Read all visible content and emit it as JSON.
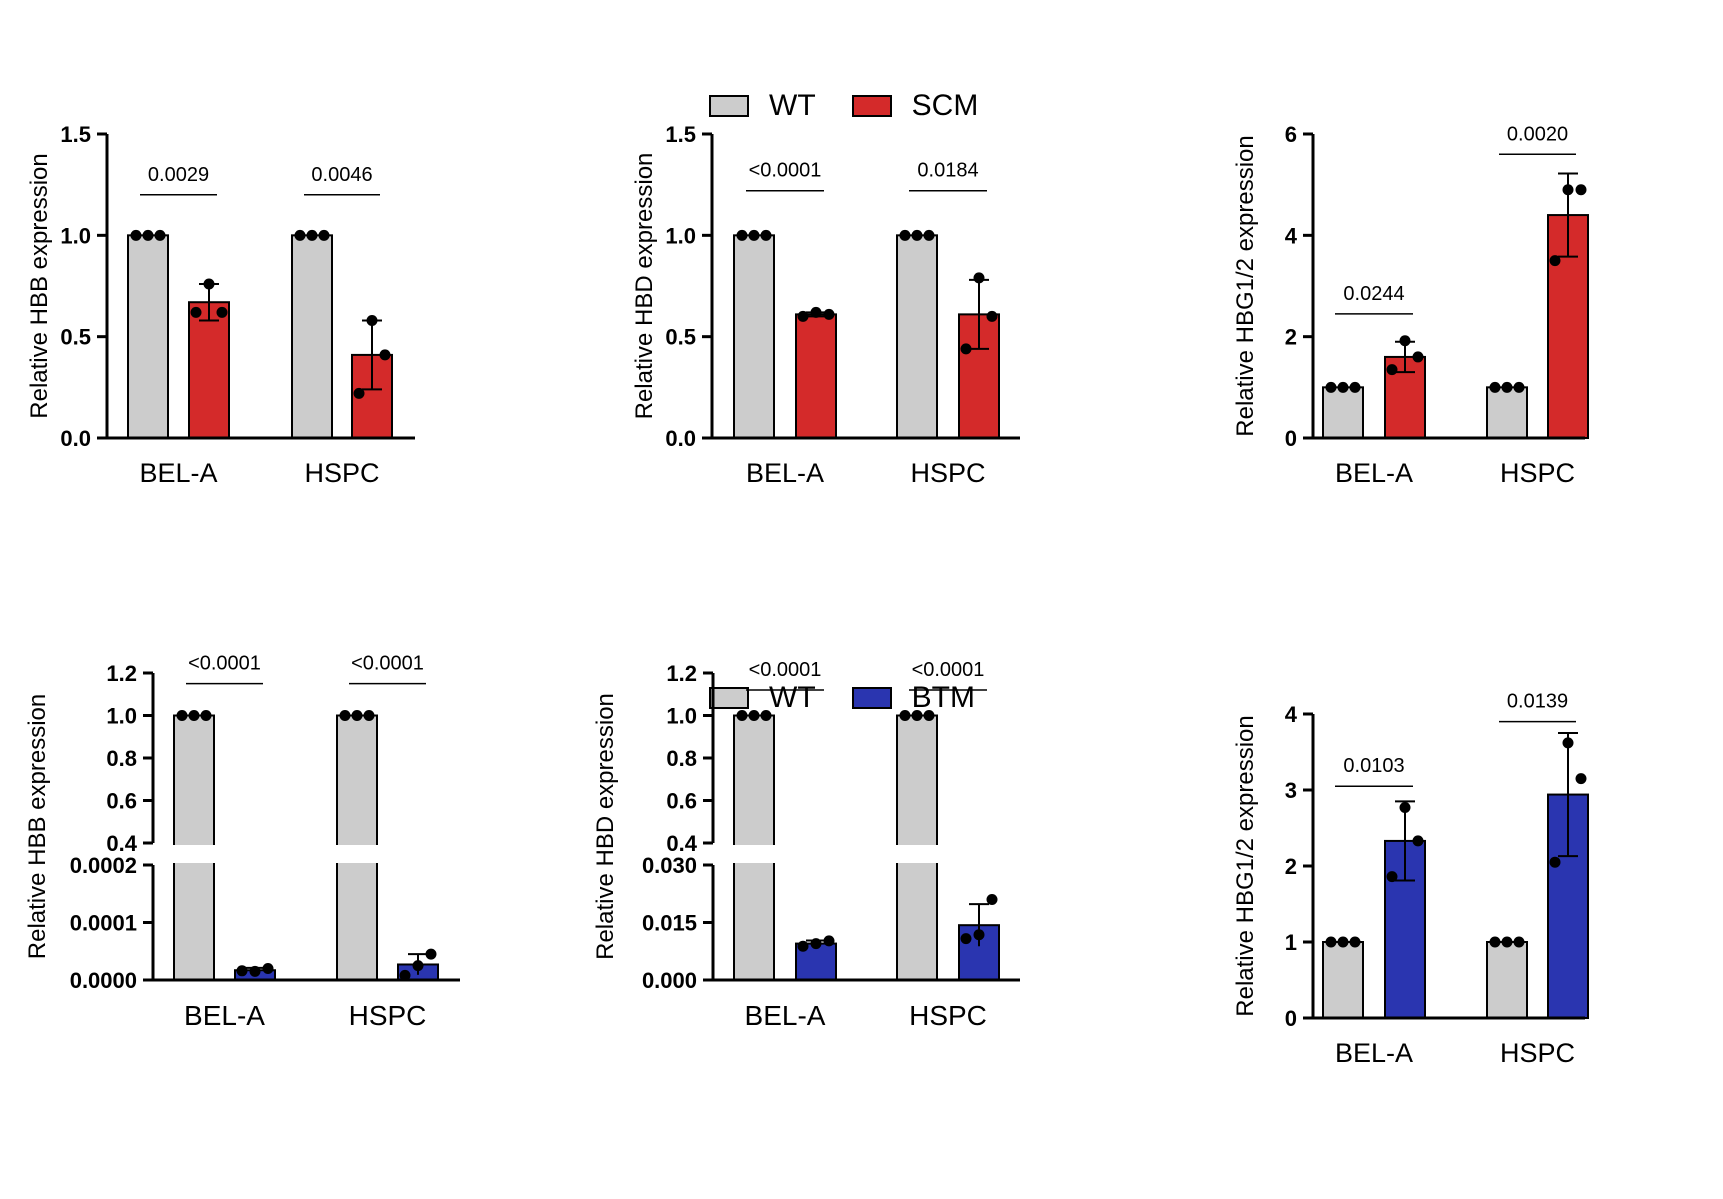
{
  "colors": {
    "wt": "#cccccc",
    "scm": "#d42a2a",
    "btm": "#2a35b0",
    "axis": "#000000"
  },
  "legends": [
    {
      "items": [
        {
          "label": "WT",
          "color": "#cccccc"
        },
        {
          "label": "SCM",
          "color": "#d42a2a"
        }
      ]
    },
    {
      "items": [
        {
          "label": "WT",
          "color": "#cccccc"
        },
        {
          "label": "BTM",
          "color": "#2a35b0"
        }
      ]
    }
  ],
  "chart_data": [
    {
      "type": "bar",
      "ylabel": "Relative HBB expression",
      "categories": [
        "BEL-A",
        "HSPC"
      ],
      "ylim": [
        0,
        1.5
      ],
      "yticks": [
        "0.0",
        "0.5",
        "1.0",
        "1.5"
      ],
      "tick_values": [
        0,
        0.5,
        1.0,
        1.5
      ],
      "series": [
        {
          "values": [
            1.0,
            1.0
          ],
          "err": [
            0,
            0
          ],
          "points": [
            [
              1.0,
              1.0,
              1.0
            ],
            [
              1.0,
              1.0,
              1.0
            ]
          ],
          "color": "#cccccc"
        },
        {
          "values": [
            0.67,
            0.41
          ],
          "err": [
            0.09,
            0.17
          ],
          "points": [
            [
              0.76,
              0.62,
              0.62
            ],
            [
              0.58,
              0.41,
              0.22
            ]
          ],
          "color": "#d42a2a"
        }
      ],
      "pvalues": [
        "0.0029",
        "0.0046"
      ],
      "pline_y": [
        1.2,
        1.2
      ]
    },
    {
      "type": "bar",
      "ylabel": "Relative HBD expression",
      "categories": [
        "BEL-A",
        "HSPC"
      ],
      "ylim": [
        0,
        1.5
      ],
      "yticks": [
        "0.0",
        "0.5",
        "1.0",
        "1.5"
      ],
      "tick_values": [
        0,
        0.5,
        1.0,
        1.5
      ],
      "series": [
        {
          "values": [
            1.0,
            1.0
          ],
          "err": [
            0,
            0
          ],
          "points": [
            [
              1.0,
              1.0,
              1.0
            ],
            [
              1.0,
              1.0,
              1.0
            ]
          ],
          "color": "#cccccc"
        },
        {
          "values": [
            0.61,
            0.61
          ],
          "err": [
            0.01,
            0.17
          ],
          "points": [
            [
              0.62,
              0.61,
              0.6
            ],
            [
              0.79,
              0.6,
              0.44
            ]
          ],
          "color": "#d42a2a"
        }
      ],
      "pvalues": [
        "<0.0001",
        "0.0184"
      ],
      "pline_y": [
        1.22,
        1.22
      ]
    },
    {
      "type": "bar",
      "ylabel": "Relative HBG1/2 expression",
      "categories": [
        "BEL-A",
        "HSPC"
      ],
      "ylim": [
        0,
        6
      ],
      "yticks": [
        "0",
        "2",
        "4",
        "6"
      ],
      "tick_values": [
        0,
        2,
        4,
        6
      ],
      "series": [
        {
          "values": [
            1.0,
            1.0
          ],
          "err": [
            0,
            0
          ],
          "points": [
            [
              1.0,
              1.0,
              1.0
            ],
            [
              1.0,
              1.0,
              1.0
            ]
          ],
          "color": "#cccccc"
        },
        {
          "values": [
            1.6,
            4.4
          ],
          "err": [
            0.3,
            0.82
          ],
          "points": [
            [
              1.92,
              1.6,
              1.35
            ],
            [
              4.9,
              4.9,
              3.5
            ]
          ],
          "color": "#d42a2a"
        }
      ],
      "pvalues": [
        "0.0244",
        "0.0020"
      ],
      "pline_y": [
        2.45,
        5.6
      ]
    },
    {
      "type": "bar",
      "ylabel": "Relative HBB expression",
      "categories": [
        "BEL-A",
        "HSPC"
      ],
      "broken_axis": true,
      "upper_ylim": [
        0.4,
        1.2
      ],
      "upper_ticks": [
        "0.4",
        "0.6",
        "0.8",
        "1.0",
        "1.2"
      ],
      "upper_tick_values": [
        0.4,
        0.6,
        0.8,
        1.0,
        1.2
      ],
      "lower_ylim": [
        0,
        0.0002
      ],
      "lower_ticks": [
        "0.0000",
        "0.0001",
        "0.0002"
      ],
      "lower_tick_values": [
        0,
        0.0001,
        0.0002
      ],
      "series": [
        {
          "values": [
            1.0,
            1.0
          ],
          "err": [
            0,
            0
          ],
          "points": [
            [
              1.0,
              1.0,
              1.0
            ],
            [
              1.0,
              1.0,
              1.0
            ]
          ],
          "color": "#cccccc"
        },
        {
          "values": [
            1.7e-05,
            2.7e-05
          ],
          "err": [
            4e-06,
            1.8e-05
          ],
          "points": [
            [
              2e-05,
              1.5e-05,
              1.6e-05
            ],
            [
              4.5e-05,
              2.5e-05,
              8e-06
            ]
          ],
          "color": "#2a35b0"
        }
      ],
      "pvalues": [
        "<0.0001",
        "<0.0001"
      ],
      "pline_y": [
        1.15,
        1.15
      ]
    },
    {
      "type": "bar",
      "ylabel": "Relative HBD expression",
      "categories": [
        "BEL-A",
        "HSPC"
      ],
      "broken_axis": true,
      "upper_ylim": [
        0.4,
        1.2
      ],
      "upper_ticks": [
        "0.4",
        "0.6",
        "0.8",
        "1.0",
        "1.2"
      ],
      "upper_tick_values": [
        0.4,
        0.6,
        0.8,
        1.0,
        1.2
      ],
      "lower_ylim": [
        0,
        0.03
      ],
      "lower_ticks": [
        "0.000",
        "0.015",
        "0.030"
      ],
      "lower_tick_values": [
        0,
        0.015,
        0.03
      ],
      "series": [
        {
          "values": [
            1.0,
            1.0
          ],
          "err": [
            0,
            0
          ],
          "points": [
            [
              1.0,
              1.0,
              1.0
            ],
            [
              1.0,
              1.0,
              1.0
            ]
          ],
          "color": "#cccccc"
        },
        {
          "values": [
            0.0095,
            0.0143
          ],
          "err": [
            0.0008,
            0.0055
          ],
          "points": [
            [
              0.0102,
              0.0095,
              0.0088
            ],
            [
              0.021,
              0.0118,
              0.0108
            ]
          ],
          "color": "#2a35b0"
        }
      ],
      "pvalues": [
        "<0.0001",
        "<0.0001"
      ],
      "pline_y": [
        1.12,
        1.12
      ]
    },
    {
      "type": "bar",
      "ylabel": "Relative HBG1/2 expression",
      "categories": [
        "BEL-A",
        "HSPC"
      ],
      "ylim": [
        0,
        4
      ],
      "yticks": [
        "0",
        "1",
        "2",
        "3",
        "4"
      ],
      "tick_values": [
        0,
        1,
        2,
        3,
        4
      ],
      "series": [
        {
          "values": [
            1.0,
            1.0
          ],
          "err": [
            0,
            0
          ],
          "points": [
            [
              1.0,
              1.0,
              1.0
            ],
            [
              1.0,
              1.0,
              1.0
            ]
          ],
          "color": "#cccccc"
        },
        {
          "values": [
            2.33,
            2.94
          ],
          "err": [
            0.52,
            0.81
          ],
          "points": [
            [
              2.77,
              2.33,
              1.86
            ],
            [
              3.62,
              3.15,
              2.05
            ]
          ],
          "color": "#2a35b0"
        }
      ],
      "pvalues": [
        "0.0103",
        "0.0139"
      ],
      "pline_y": [
        3.05,
        3.9
      ]
    }
  ]
}
